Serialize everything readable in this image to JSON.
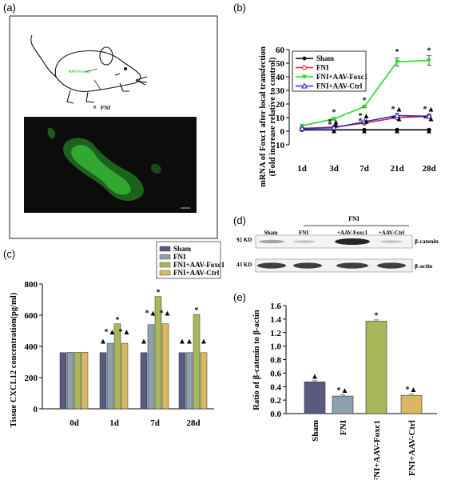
{
  "panels": {
    "a": {
      "label": "(a)",
      "mouse_label": "AAV-Foxc1",
      "fni_label": "FNI",
      "frame_colors": {
        "frame": "#333333",
        "fluorescence": "#3ac83a",
        "background": "#0c0c0c"
      }
    },
    "b": {
      "label": "(b)"
    },
    "c": {
      "label": "(c)"
    },
    "d": {
      "label": "(d)",
      "group_header": "FNI",
      "lanes": [
        "Sham",
        "FNI",
        "+AAV-Foxc1",
        "+AAV-Ctrl"
      ],
      "rows": [
        {
          "kd": "92 KD",
          "protein": "β-catenin"
        },
        {
          "kd": "43 KD",
          "protein": "β-actin"
        }
      ]
    },
    "e": {
      "label": "(e)"
    }
  },
  "chart_data": [
    {
      "id": "b",
      "type": "line",
      "title": "",
      "xlabel": "",
      "ylabel": "mRNA of Foxc1 after local transfection",
      "ylabel2": "(Fold increase relative to control)",
      "categories": [
        "1d",
        "3d",
        "7d",
        "21d",
        "28d"
      ],
      "ylim": [
        -10,
        60
      ],
      "yticks": [
        -10,
        0,
        10,
        20,
        30,
        40,
        50,
        60
      ],
      "series": [
        {
          "name": "Sham",
          "values": [
            1,
            1,
            1,
            1,
            1
          ],
          "color": "#000000",
          "marker": "circle"
        },
        {
          "name": "FNI",
          "values": [
            2,
            3,
            6,
            10,
            11
          ],
          "color": "#e02020",
          "marker": "open-circle"
        },
        {
          "name": "FNI+AAV-Foxc1",
          "values": [
            4,
            9,
            18,
            51,
            52
          ],
          "color": "#22dd22",
          "marker": "triangle-down",
          "errors": [
            0,
            0.8,
            0.8,
            3,
            3.5
          ]
        },
        {
          "name": "FNI+AAV-Ctrl",
          "values": [
            2,
            2.5,
            7,
            11.5,
            11
          ],
          "color": "#2a2ae0",
          "marker": "triangle-up",
          "errors": [
            0,
            0.5,
            0.5,
            1.5,
            1.5
          ]
        }
      ],
      "annotations": [
        {
          "cat": 1,
          "y": 12,
          "text": "*"
        },
        {
          "cat": 2,
          "y": 21,
          "text": "*"
        },
        {
          "cat": 3,
          "y": 56.5,
          "text": "*"
        },
        {
          "cat": 4,
          "y": 57.5,
          "text": "*"
        },
        {
          "cat": 1,
          "y": 5,
          "text": "*▲"
        },
        {
          "cat": 2,
          "y": 9.5,
          "text": "*▲"
        },
        {
          "cat": 3,
          "y": 14.5,
          "text": "*▲"
        },
        {
          "cat": 4,
          "y": 14.5,
          "text": "*▲"
        },
        {
          "cat": 1,
          "y": 3,
          "text": "*▲"
        },
        {
          "cat": 2,
          "y": 5.5,
          "text": "*▲"
        },
        {
          "cat": 3,
          "y": 7.5,
          "text": "*▲"
        },
        {
          "cat": 4,
          "y": 7.5,
          "text": "*▲"
        },
        {
          "cat": 1,
          "y": -1.5,
          "text": "▲"
        },
        {
          "cat": 2,
          "y": -1.5,
          "text": "▲"
        },
        {
          "cat": 3,
          "y": -1.5,
          "text": "▲"
        },
        {
          "cat": 4,
          "y": -1.5,
          "text": "▲"
        }
      ]
    },
    {
      "id": "c",
      "type": "bar",
      "title": "",
      "xlabel": "",
      "ylabel": "Tissue CXCL12 concentration(pg/ml)",
      "categories": [
        "0d",
        "1d",
        "7d",
        "28d"
      ],
      "ylim": [
        0,
        800
      ],
      "yticks": [
        0,
        200,
        400,
        600,
        800
      ],
      "series": [
        {
          "name": "Sham",
          "values": [
            360,
            360,
            360,
            360
          ],
          "color": "#5a5a80"
        },
        {
          "name": "FNI",
          "values": [
            362,
            420,
            540,
            360
          ],
          "color": "#8da0ac"
        },
        {
          "name": "FNI+AAV-Foxc1",
          "values": [
            362,
            545,
            720,
            605
          ],
          "color": "#aab65a"
        },
        {
          "name": "FNI+AAV-Ctrl",
          "values": [
            362,
            420,
            545,
            360
          ],
          "color": "#d8b860"
        }
      ],
      "annotations": [
        {
          "cat": 1,
          "offset": 0,
          "y": 418,
          "text": "▲"
        },
        {
          "cat": 1,
          "offset": 1,
          "y": 478,
          "text": "*▲"
        },
        {
          "cat": 1,
          "offset": 2,
          "y": 555,
          "text": "*"
        },
        {
          "cat": 1,
          "offset": 3,
          "y": 478,
          "text": "*▲"
        },
        {
          "cat": 2,
          "offset": 0,
          "y": 418,
          "text": "▲"
        },
        {
          "cat": 2,
          "offset": 1,
          "y": 598,
          "text": "*▲"
        },
        {
          "cat": 2,
          "offset": 2,
          "y": 732,
          "text": "*"
        },
        {
          "cat": 2,
          "offset": 3,
          "y": 598,
          "text": "*▲"
        },
        {
          "cat": 3,
          "offset": 0,
          "y": 418,
          "text": "▲"
        },
        {
          "cat": 3,
          "offset": 1,
          "y": 418,
          "text": "▲"
        },
        {
          "cat": 3,
          "offset": 2,
          "y": 615,
          "text": "*"
        },
        {
          "cat": 3,
          "offset": 3,
          "y": 418,
          "text": "▲"
        }
      ]
    },
    {
      "id": "e",
      "type": "bar",
      "title": "",
      "xlabel": "",
      "ylabel": "Ratio of β-catenin to β-actin",
      "categories": [
        "Sham",
        "FNI",
        "FNI+AAV-Foxc1",
        "FNI+AAV-Ctrl"
      ],
      "values": [
        0.47,
        0.26,
        1.37,
        0.27
      ],
      "colors": [
        "#5a5a80",
        "#8da0ac",
        "#aab65a",
        "#d8b860"
      ],
      "ylim": [
        0,
        1.6
      ],
      "yticks": [
        "0.0",
        "0.2",
        "0.4",
        "0.6",
        "0.8",
        "1.0",
        "1.2",
        "1.4",
        "1.6"
      ],
      "annotations": [
        {
          "cat": 0,
          "text": "▲"
        },
        {
          "cat": 1,
          "text": "*▲"
        },
        {
          "cat": 2,
          "text": "*"
        },
        {
          "cat": 3,
          "text": "*▲"
        }
      ]
    }
  ]
}
